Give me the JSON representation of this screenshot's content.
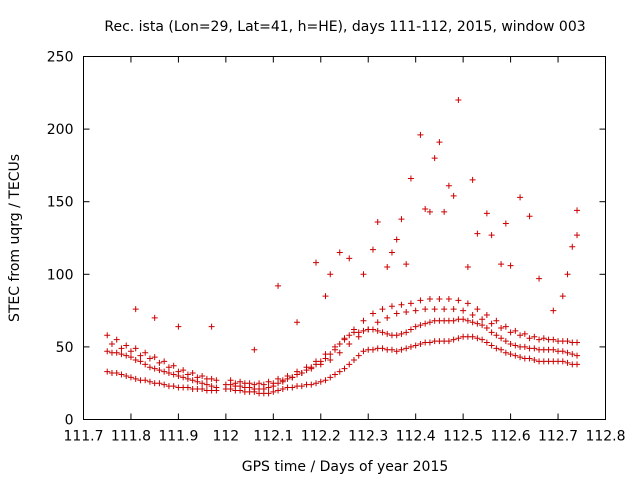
{
  "chart_data": {
    "type": "scatter",
    "title": "Rec. ista (Lon=29, Lat=41, h=HE), days 111-112, 2015, window 003",
    "xlabel": "GPS time / Days of year 2015",
    "ylabel": "STEC from uqrg / TECUs",
    "xlim": [
      111.7,
      112.8
    ],
    "ylim": [
      0,
      250
    ],
    "xticks": [
      "111.7",
      "111.8",
      "111.9",
      "112",
      "112.1",
      "112.2",
      "112.3",
      "112.4",
      "112.5",
      "112.6",
      "112.7",
      "112.8"
    ],
    "yticks": [
      "0",
      "50",
      "100",
      "150",
      "200",
      "250"
    ],
    "grid": false,
    "legend": "none",
    "marker": "+",
    "color": "#cc0000",
    "series": [
      {
        "name": "",
        "x": [
          111.75,
          111.76,
          111.77,
          111.78,
          111.79,
          111.8,
          111.81,
          111.82,
          111.83,
          111.84,
          111.85,
          111.86,
          111.87,
          111.88,
          111.89,
          111.9,
          111.91,
          111.92,
          111.93,
          111.94,
          111.95,
          111.96,
          111.97,
          111.98,
          112.0,
          112.01,
          112.02,
          112.03,
          112.04,
          112.05,
          112.06,
          112.07,
          112.08,
          112.09,
          112.1,
          112.11,
          112.12,
          112.13,
          112.14,
          112.15,
          112.16,
          112.17,
          112.18,
          112.19,
          112.2,
          112.21,
          112.22,
          112.23,
          112.24,
          112.25,
          112.26,
          112.27,
          112.28,
          112.29,
          112.3,
          112.31,
          112.32,
          112.33,
          112.34,
          112.35,
          112.36,
          112.37,
          112.38,
          112.39,
          112.4,
          112.41,
          112.42,
          112.43,
          112.44,
          112.45,
          112.46,
          112.47,
          112.48,
          112.49,
          112.5,
          112.51,
          112.52,
          112.53,
          112.54,
          112.55,
          112.56,
          112.57,
          112.58,
          112.59,
          112.6,
          112.61,
          112.62,
          112.63,
          112.64,
          112.65,
          112.66,
          112.67,
          112.68,
          112.69,
          112.7,
          112.71,
          112.72,
          112.73,
          112.74,
          111.75,
          111.76,
          111.77,
          111.78,
          111.79,
          111.8,
          111.81,
          111.82,
          111.83,
          111.84,
          111.85,
          111.86,
          111.87,
          111.88,
          111.89,
          111.9,
          111.91,
          111.92,
          111.93,
          111.94,
          111.95,
          111.96,
          111.97,
          111.98,
          112.0,
          112.01,
          112.02,
          112.03,
          112.04,
          112.05,
          112.06,
          112.07,
          112.08,
          112.09,
          112.1,
          112.11,
          112.12,
          112.13,
          112.14,
          112.15,
          112.16,
          112.17,
          112.18,
          112.19,
          112.2,
          112.21,
          112.22,
          112.23,
          112.24,
          112.25,
          112.26,
          112.27,
          112.28,
          112.29,
          112.3,
          112.31,
          112.32,
          112.33,
          112.34,
          112.35,
          112.36,
          112.37,
          112.38,
          112.39,
          112.4,
          112.41,
          112.42,
          112.43,
          112.44,
          112.45,
          112.46,
          112.47,
          112.48,
          112.49,
          112.5,
          112.51,
          112.52,
          112.53,
          112.54,
          112.55,
          112.56,
          112.57,
          112.58,
          112.59,
          112.6,
          112.61,
          112.62,
          112.63,
          112.64,
          112.65,
          112.66,
          112.67,
          112.68,
          112.69,
          112.7,
          112.71,
          112.72,
          112.73,
          112.74,
          111.75,
          111.77,
          111.79,
          111.81,
          111.83,
          111.85,
          111.87,
          111.89,
          111.91,
          111.93,
          111.95,
          111.97,
          112.01,
          112.03,
          112.05,
          112.07,
          112.09,
          112.11,
          112.13,
          112.15,
          112.17,
          112.19,
          112.21,
          112.23,
          112.25,
          112.27,
          112.29,
          112.31,
          112.33,
          112.35,
          112.37,
          112.39,
          112.41,
          112.43,
          112.45,
          112.47,
          112.49,
          112.51,
          112.53,
          112.55,
          112.57,
          112.59,
          112.61,
          112.63,
          112.65,
          112.67,
          112.69,
          112.71,
          112.73,
          111.76,
          111.78,
          111.8,
          111.82,
          111.84,
          111.86,
          111.88,
          111.9,
          111.92,
          111.94,
          111.96,
          111.98,
          112.02,
          112.04,
          112.06,
          112.08,
          112.1,
          112.12,
          112.14,
          112.16,
          112.18,
          112.2,
          112.22,
          112.24,
          112.26,
          112.28,
          112.3,
          112.32,
          112.34,
          112.36,
          112.38,
          112.4,
          112.42,
          112.44,
          112.46,
          112.48,
          112.5,
          112.52,
          112.54,
          112.56,
          112.58,
          112.6,
          112.62,
          112.64,
          112.66,
          112.68,
          112.7,
          112.72,
          112.74,
          111.81,
          111.85,
          111.9,
          111.97,
          112.06,
          112.11,
          112.15,
          112.19,
          112.21,
          112.22,
          112.24,
          112.26,
          112.29,
          112.31,
          112.32,
          112.34,
          112.35,
          112.36,
          112.37,
          112.38,
          112.39,
          112.41,
          112.42,
          112.43,
          112.44,
          112.45,
          112.46,
          112.47,
          112.48,
          112.49,
          112.51,
          112.52,
          112.53,
          112.55,
          112.56,
          112.58,
          112.59,
          112.6,
          112.62,
          112.64,
          112.66,
          112.69,
          112.71,
          112.72,
          112.73,
          112.74,
          112.74
        ],
        "y": [
          33,
          32,
          32,
          31,
          30,
          29,
          28,
          27,
          27,
          26,
          25,
          25,
          24,
          23,
          23,
          22,
          22,
          22,
          21,
          21,
          21,
          20,
          20,
          20,
          21,
          21,
          20,
          20,
          19,
          19,
          19,
          18,
          18,
          18,
          19,
          20,
          21,
          22,
          22,
          23,
          23,
          24,
          24,
          25,
          26,
          27,
          29,
          31,
          33,
          35,
          38,
          41,
          44,
          47,
          48,
          48,
          49,
          49,
          48,
          48,
          47,
          48,
          49,
          50,
          51,
          52,
          53,
          53,
          54,
          54,
          54,
          54,
          55,
          56,
          57,
          57,
          57,
          56,
          55,
          53,
          51,
          49,
          48,
          46,
          45,
          44,
          43,
          42,
          42,
          41,
          40,
          40,
          40,
          40,
          40,
          40,
          39,
          38,
          38,
          47,
          46,
          46,
          45,
          44,
          43,
          41,
          40,
          38,
          36,
          35,
          34,
          33,
          32,
          31,
          30,
          29,
          28,
          27,
          26,
          25,
          24,
          23,
          22,
          24,
          24,
          23,
          23,
          22,
          22,
          21,
          21,
          21,
          22,
          23,
          25,
          26,
          28,
          29,
          31,
          32,
          34,
          36,
          38,
          40,
          42,
          45,
          48,
          52,
          55,
          58,
          60,
          60,
          61,
          62,
          62,
          61,
          60,
          59,
          58,
          58,
          59,
          60,
          62,
          64,
          65,
          66,
          67,
          68,
          68,
          68,
          68,
          68,
          69,
          69,
          68,
          67,
          66,
          65,
          63,
          60,
          58,
          56,
          54,
          52,
          51,
          50,
          50,
          49,
          49,
          48,
          48,
          48,
          48,
          47,
          47,
          46,
          45,
          44,
          58,
          55,
          51,
          49,
          46,
          43,
          40,
          37,
          34,
          32,
          30,
          28,
          27,
          26,
          25,
          25,
          26,
          28,
          30,
          33,
          36,
          40,
          45,
          50,
          56,
          62,
          68,
          73,
          76,
          78,
          79,
          80,
          82,
          83,
          83,
          83,
          82,
          80,
          76,
          72,
          68,
          64,
          61,
          59,
          57,
          56,
          55,
          54,
          53,
          52,
          49,
          47,
          44,
          42,
          39,
          36,
          33,
          31,
          29,
          28,
          27,
          25,
          25,
          24,
          24,
          25,
          27,
          29,
          32,
          35,
          38,
          41,
          46,
          52,
          57,
          62,
          67,
          70,
          73,
          74,
          75,
          76,
          76,
          76,
          76,
          75,
          72,
          69,
          66,
          63,
          60,
          58,
          56,
          55,
          55,
          54,
          54,
          53,
          76,
          70,
          64,
          64,
          48,
          92,
          67,
          108,
          85,
          100,
          115,
          111,
          100,
          117,
          136,
          105,
          115,
          124,
          138,
          107,
          166,
          196,
          145,
          143,
          180,
          191,
          143,
          161,
          154,
          220,
          105,
          165,
          128,
          142,
          127,
          107,
          135,
          106,
          153,
          140,
          97,
          75,
          85,
          100,
          119,
          144,
          127
        ],
        "label_note": ""
      }
    ]
  }
}
